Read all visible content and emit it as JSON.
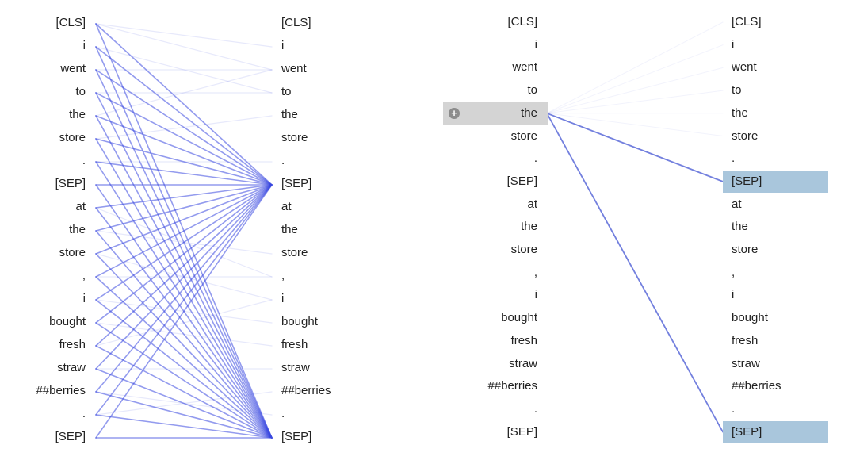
{
  "left_view": {
    "source_tokens": [
      "[CLS]",
      "i",
      "went",
      "to",
      "the",
      "store",
      ".",
      "[SEP]",
      "at",
      "the",
      "store",
      ",",
      "i",
      "bought",
      "fresh",
      "straw",
      "##berries",
      ".",
      "[SEP]"
    ],
    "target_tokens": [
      "[CLS]",
      "i",
      "went",
      "to",
      "the",
      "store",
      ".",
      "[SEP]",
      "at",
      "the",
      "store",
      ",",
      "i",
      "bought",
      "fresh",
      "straw",
      "##berries",
      ".",
      "[SEP]"
    ],
    "attention_color": "#3b48e0"
  },
  "right_view": {
    "source_tokens": [
      "[CLS]",
      "i",
      "went",
      "to",
      "the",
      "store",
      ".",
      "[SEP]",
      "at",
      "the",
      "store",
      ",",
      "i",
      "bought",
      "fresh",
      "straw",
      "##berries",
      ".",
      "[SEP]"
    ],
    "target_tokens": [
      "[CLS]",
      "i",
      "went",
      "to",
      "the",
      "store",
      ".",
      "[SEP]",
      "at",
      "the",
      "store",
      ",",
      "i",
      "bought",
      "fresh",
      "straw",
      "##berries",
      ".",
      "[SEP]"
    ],
    "selected_source_index": 4,
    "highlighted_target_indices": [
      7,
      18
    ],
    "selected_icon": "plus-circle-icon",
    "attention_color": "#5b6ad8",
    "selected_color": "#d4d4d4",
    "highlight_color": "#a9c6dc"
  }
}
